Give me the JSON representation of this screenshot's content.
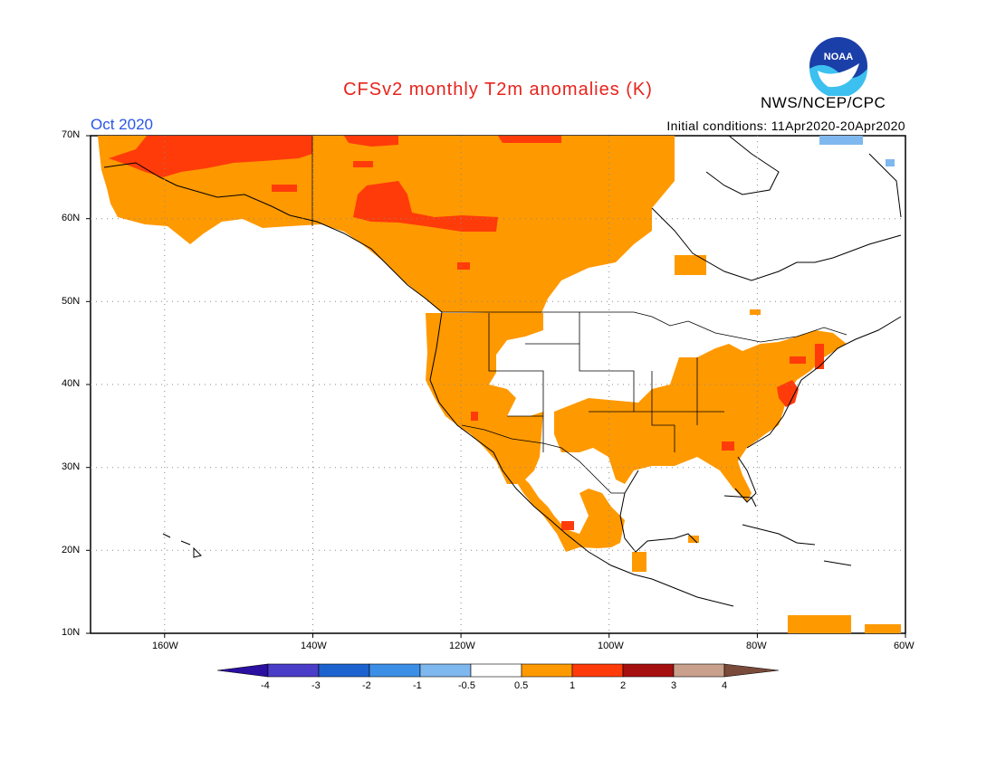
{
  "title": "CFSv2 monthly T2m anomalies (K)",
  "agency": "NWS/NCEP/CPC",
  "logo_text": "NOAA",
  "valid_month": "Oct 2020",
  "initial_conditions": "Initial conditions: 11Apr2020-20Apr2020",
  "map": {
    "projection": "lat-lon",
    "lat_range": [
      10,
      70
    ],
    "lon_range": [
      -170,
      -60
    ],
    "grid": "dotted",
    "lat_labels": [
      "70N",
      "60N",
      "50N",
      "40N",
      "30N",
      "20N",
      "10N"
    ],
    "lon_labels": [
      "160W",
      "140W",
      "120W",
      "100W",
      "80W",
      "60W"
    ]
  },
  "colorbar": {
    "labels": [
      "-4",
      "-3",
      "-2",
      "-1",
      "-0.5",
      "0.5",
      "1",
      "2",
      "3",
      "4"
    ],
    "colors": [
      "#2a0fa0",
      "#4a3dc8",
      "#1c63cf",
      "#3c8fe6",
      "#7fb8ee",
      "#ffffff",
      "#ff9900",
      "#ff3b0a",
      "#a50f0f",
      "#c9a08c",
      "#7a4a3a"
    ]
  },
  "anomaly_regions": [
    {
      "name": "Alaska / NW Canada",
      "category": "0.5 to 1"
    },
    {
      "name": "N Alaska & Yukon core",
      "category": "1 to 2"
    },
    {
      "name": "W Canada (BC)",
      "category": "1 to 2"
    },
    {
      "name": "US West Coast",
      "category": "0.5 to 1"
    },
    {
      "name": "US South & Southeast",
      "category": "0.5 to 1"
    },
    {
      "name": "Mid-Atlantic / New England",
      "category": "1 to 2"
    },
    {
      "name": "Mexico",
      "category": "0.5 to 1"
    },
    {
      "name": "Greenland edge",
      "category": "-1 to -0.5"
    }
  ]
}
